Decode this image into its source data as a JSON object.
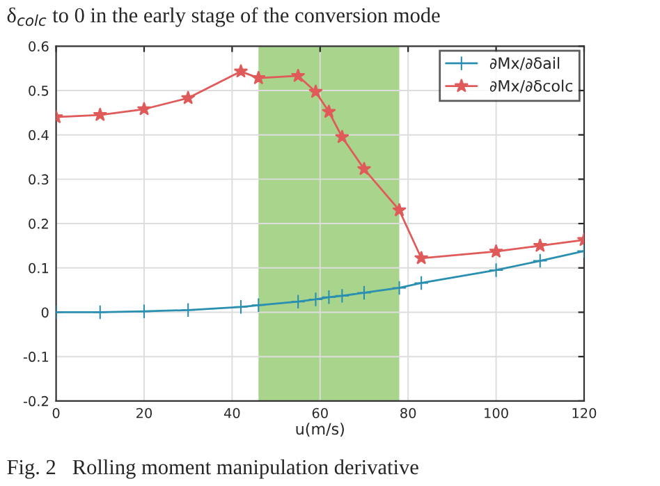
{
  "chart_data": {
    "type": "line",
    "xlabel": "u(m/s)",
    "annotations": [
      "δ$_{colc}$ to 0 in the early stage of the conversion mode",
      "Fig. 2   Rolling moment manipulation derivative"
    ],
    "series": [
      {
        "name": "∂Mx/∂δail",
        "color": "#2a8fb0",
        "marker": "cross",
        "x": [
          0,
          10,
          20,
          30,
          42,
          46,
          55,
          59,
          62,
          65,
          70,
          78,
          83,
          100,
          110,
          120
        ],
        "values": [
          0,
          0,
          0.002,
          0.005,
          0.012,
          0.016,
          0.024,
          0.029,
          0.034,
          0.037,
          0.044,
          0.055,
          0.066,
          0.095,
          0.116,
          0.138
        ]
      },
      {
        "name": "∂Mx/∂δcolc",
        "color": "#e05a5a",
        "marker": "star",
        "x": [
          0,
          10,
          20,
          30,
          42,
          46,
          55,
          59,
          62,
          65,
          70,
          78,
          83,
          100,
          110,
          120
        ],
        "values": [
          0.44,
          0.445,
          0.458,
          0.483,
          0.543,
          0.528,
          0.533,
          0.497,
          0.452,
          0.395,
          0.323,
          0.23,
          0.122,
          0.137,
          0.15,
          0.163
        ]
      }
    ],
    "bands": [
      {
        "axis": "x",
        "from": 46,
        "to": 78,
        "color": "#a8d48c"
      }
    ],
    "xlim": [
      0,
      120
    ],
    "xticks": [
      0,
      20,
      40,
      60,
      80,
      100,
      120
    ],
    "ylim": [
      -0.2,
      0.6
    ],
    "yticks": [
      -0.2,
      -0.1,
      0,
      0.1,
      0.2,
      0.3,
      0.4,
      0.5,
      0.6
    ],
    "grid": true,
    "legend": "top right",
    "line_style": "solid"
  }
}
